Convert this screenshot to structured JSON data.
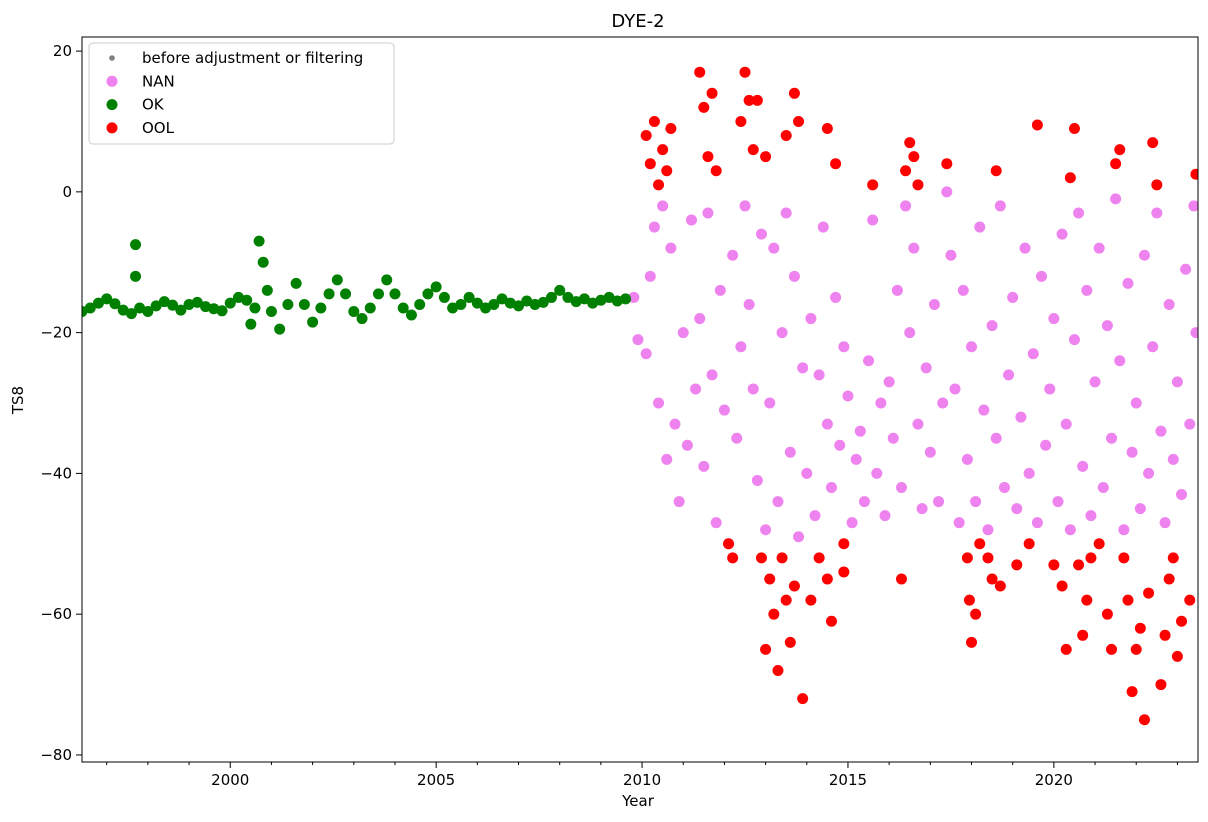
{
  "chart_data": {
    "type": "scatter",
    "title": "DYE-2",
    "xlabel": "Year",
    "ylabel": "TS8",
    "xlim": [
      1996.4,
      2023.5
    ],
    "ylim": [
      -81,
      22
    ],
    "xticks": [
      2000,
      2005,
      2010,
      2015,
      2020
    ],
    "xtick_labels": [
      "2000",
      "2005",
      "2010",
      "2015",
      "2020"
    ],
    "yticks": [
      20,
      0,
      -20,
      -40,
      -60,
      -80
    ],
    "ytick_labels": [
      "20",
      "0",
      "−20",
      "−40",
      "−60",
      "−80"
    ],
    "grid": false,
    "legend_position": "top-left",
    "series": [
      {
        "name": "before adjustment or filtering",
        "color": "#808080",
        "marker": "small-dot",
        "points": []
      },
      {
        "name": "NAN",
        "color": "#ee82ee",
        "marker": "dot",
        "points": [
          [
            2009.8,
            -15
          ],
          [
            2009.9,
            -21
          ],
          [
            2010.1,
            -23
          ],
          [
            2010.2,
            -12
          ],
          [
            2010.3,
            -5
          ],
          [
            2010.4,
            -30
          ],
          [
            2010.5,
            -2
          ],
          [
            2010.6,
            -38
          ],
          [
            2010.7,
            -8
          ],
          [
            2010.8,
            -33
          ],
          [
            2010.9,
            -44
          ],
          [
            2011.0,
            -20
          ],
          [
            2011.1,
            -36
          ],
          [
            2011.2,
            -4
          ],
          [
            2011.3,
            -28
          ],
          [
            2011.4,
            -18
          ],
          [
            2011.5,
            -39
          ],
          [
            2011.6,
            -3
          ],
          [
            2011.7,
            -26
          ],
          [
            2011.8,
            -47
          ],
          [
            2011.9,
            -14
          ],
          [
            2012.0,
            -31
          ],
          [
            2012.1,
            -50
          ],
          [
            2012.2,
            -9
          ],
          [
            2012.3,
            -35
          ],
          [
            2012.4,
            -22
          ],
          [
            2012.5,
            -2
          ],
          [
            2012.6,
            -16
          ],
          [
            2012.7,
            -28
          ],
          [
            2012.8,
            -41
          ],
          [
            2012.9,
            -6
          ],
          [
            2013.0,
            -48
          ],
          [
            2013.1,
            -30
          ],
          [
            2013.2,
            -8
          ],
          [
            2013.3,
            -44
          ],
          [
            2013.4,
            -20
          ],
          [
            2013.5,
            -3
          ],
          [
            2013.6,
            -37
          ],
          [
            2013.7,
            -12
          ],
          [
            2013.8,
            -49
          ],
          [
            2013.9,
            -25
          ],
          [
            2014.0,
            -40
          ],
          [
            2014.1,
            -18
          ],
          [
            2014.2,
            -46
          ],
          [
            2014.3,
            -26
          ],
          [
            2014.4,
            -5
          ],
          [
            2014.5,
            -33
          ],
          [
            2014.6,
            -42
          ],
          [
            2014.7,
            -15
          ],
          [
            2014.8,
            -36
          ],
          [
            2014.9,
            -22
          ],
          [
            2015.0,
            -29
          ],
          [
            2015.1,
            -47
          ],
          [
            2015.2,
            -38
          ],
          [
            2015.3,
            -34
          ],
          [
            2015.4,
            -44
          ],
          [
            2015.5,
            -24
          ],
          [
            2015.6,
            -4
          ],
          [
            2015.7,
            -40
          ],
          [
            2015.8,
            -30
          ],
          [
            2015.9,
            -46
          ],
          [
            2016.0,
            -27
          ],
          [
            2016.1,
            -35
          ],
          [
            2016.2,
            -14
          ],
          [
            2016.3,
            -42
          ],
          [
            2016.4,
            -2
          ],
          [
            2016.5,
            -20
          ],
          [
            2016.6,
            -8
          ],
          [
            2016.7,
            -33
          ],
          [
            2016.8,
            -45
          ],
          [
            2016.9,
            -25
          ],
          [
            2017.0,
            -37
          ],
          [
            2017.1,
            -16
          ],
          [
            2017.2,
            -44
          ],
          [
            2017.3,
            -30
          ],
          [
            2017.4,
            0
          ],
          [
            2017.5,
            -9
          ],
          [
            2017.6,
            -28
          ],
          [
            2017.7,
            -47
          ],
          [
            2017.8,
            -14
          ],
          [
            2017.9,
            -38
          ],
          [
            2018.0,
            -22
          ],
          [
            2018.1,
            -44
          ],
          [
            2018.2,
            -5
          ],
          [
            2018.3,
            -31
          ],
          [
            2018.4,
            -48
          ],
          [
            2018.5,
            -19
          ],
          [
            2018.6,
            -35
          ],
          [
            2018.7,
            -2
          ],
          [
            2018.8,
            -42
          ],
          [
            2018.9,
            -26
          ],
          [
            2019.0,
            -15
          ],
          [
            2019.1,
            -45
          ],
          [
            2019.2,
            -32
          ],
          [
            2019.3,
            -8
          ],
          [
            2019.4,
            -40
          ],
          [
            2019.5,
            -23
          ],
          [
            2019.6,
            -47
          ],
          [
            2019.7,
            -12
          ],
          [
            2019.8,
            -36
          ],
          [
            2019.9,
            -28
          ],
          [
            2020.0,
            -18
          ],
          [
            2020.1,
            -44
          ],
          [
            2020.2,
            -6
          ],
          [
            2020.3,
            -33
          ],
          [
            2020.4,
            -48
          ],
          [
            2020.5,
            -21
          ],
          [
            2020.6,
            -3
          ],
          [
            2020.7,
            -39
          ],
          [
            2020.8,
            -14
          ],
          [
            2020.9,
            -46
          ],
          [
            2021.0,
            -27
          ],
          [
            2021.1,
            -8
          ],
          [
            2021.2,
            -42
          ],
          [
            2021.3,
            -19
          ],
          [
            2021.4,
            -35
          ],
          [
            2021.5,
            -1
          ],
          [
            2021.6,
            -24
          ],
          [
            2021.7,
            -48
          ],
          [
            2021.8,
            -13
          ],
          [
            2021.9,
            -37
          ],
          [
            2022.0,
            -30
          ],
          [
            2022.1,
            -45
          ],
          [
            2022.2,
            -9
          ],
          [
            2022.3,
            -40
          ],
          [
            2022.4,
            -22
          ],
          [
            2022.5,
            -3
          ],
          [
            2022.6,
            -34
          ],
          [
            2022.7,
            -47
          ],
          [
            2022.8,
            -16
          ],
          [
            2022.9,
            -38
          ],
          [
            2023.0,
            -27
          ],
          [
            2023.1,
            -43
          ],
          [
            2023.2,
            -11
          ],
          [
            2023.3,
            -33
          ],
          [
            2023.4,
            -2
          ],
          [
            2023.45,
            -20
          ]
        ]
      },
      {
        "name": "OK",
        "color": "#008000",
        "marker": "dot",
        "points": [
          [
            1996.4,
            -17
          ],
          [
            1996.6,
            -16.5
          ],
          [
            1996.8,
            -15.8
          ],
          [
            1997.0,
            -15.2
          ],
          [
            1997.2,
            -15.9
          ],
          [
            1997.4,
            -16.8
          ],
          [
            1997.6,
            -17.3
          ],
          [
            1997.7,
            -7.5
          ],
          [
            1997.7,
            -12
          ],
          [
            1997.8,
            -16.5
          ],
          [
            1998.0,
            -17
          ],
          [
            1998.2,
            -16.2
          ],
          [
            1998.4,
            -15.6
          ],
          [
            1998.6,
            -16.1
          ],
          [
            1998.8,
            -16.8
          ],
          [
            1999.0,
            -16
          ],
          [
            1999.2,
            -15.7
          ],
          [
            1999.4,
            -16.3
          ],
          [
            1999.6,
            -16.6
          ],
          [
            1999.8,
            -16.9
          ],
          [
            2000.0,
            -15.8
          ],
          [
            2000.2,
            -15
          ],
          [
            2000.4,
            -15.4
          ],
          [
            2000.5,
            -18.8
          ],
          [
            2000.6,
            -16.5
          ],
          [
            2000.7,
            -7
          ],
          [
            2000.8,
            -10
          ],
          [
            2000.9,
            -14
          ],
          [
            2001.0,
            -17
          ],
          [
            2001.2,
            -19.5
          ],
          [
            2001.4,
            -16
          ],
          [
            2001.6,
            -13
          ],
          [
            2001.8,
            -16
          ],
          [
            2002.0,
            -18.5
          ],
          [
            2002.2,
            -16.5
          ],
          [
            2002.4,
            -14.5
          ],
          [
            2002.6,
            -12.5
          ],
          [
            2002.8,
            -14.5
          ],
          [
            2003.0,
            -17
          ],
          [
            2003.2,
            -18
          ],
          [
            2003.4,
            -16.5
          ],
          [
            2003.6,
            -14.5
          ],
          [
            2003.8,
            -12.5
          ],
          [
            2004.0,
            -14.5
          ],
          [
            2004.2,
            -16.5
          ],
          [
            2004.4,
            -17.5
          ],
          [
            2004.6,
            -16
          ],
          [
            2004.8,
            -14.5
          ],
          [
            2005.0,
            -13.5
          ],
          [
            2005.2,
            -15
          ],
          [
            2005.4,
            -16.5
          ],
          [
            2005.6,
            -16
          ],
          [
            2005.8,
            -15
          ],
          [
            2006.0,
            -15.8
          ],
          [
            2006.2,
            -16.5
          ],
          [
            2006.4,
            -16
          ],
          [
            2006.6,
            -15.2
          ],
          [
            2006.8,
            -15.8
          ],
          [
            2007.0,
            -16.2
          ],
          [
            2007.2,
            -15.5
          ],
          [
            2007.4,
            -16
          ],
          [
            2007.6,
            -15.7
          ],
          [
            2007.8,
            -15
          ],
          [
            2008.0,
            -14
          ],
          [
            2008.2,
            -15
          ],
          [
            2008.4,
            -15.6
          ],
          [
            2008.6,
            -15.2
          ],
          [
            2008.8,
            -15.8
          ],
          [
            2009.0,
            -15.4
          ],
          [
            2009.2,
            -15
          ],
          [
            2009.4,
            -15.5
          ],
          [
            2009.6,
            -15.2
          ]
        ]
      },
      {
        "name": "OOL",
        "color": "#ff0000",
        "marker": "dot",
        "points": [
          [
            2010.1,
            8
          ],
          [
            2010.2,
            4
          ],
          [
            2010.3,
            10
          ],
          [
            2010.4,
            1
          ],
          [
            2010.5,
            6
          ],
          [
            2010.6,
            3
          ],
          [
            2010.7,
            9
          ],
          [
            2011.4,
            17
          ],
          [
            2011.5,
            12
          ],
          [
            2011.6,
            5
          ],
          [
            2011.7,
            14
          ],
          [
            2011.8,
            3
          ],
          [
            2012.1,
            -50
          ],
          [
            2012.2,
            -52
          ],
          [
            2012.4,
            10
          ],
          [
            2012.5,
            17
          ],
          [
            2012.6,
            13
          ],
          [
            2012.7,
            6
          ],
          [
            2012.8,
            13
          ],
          [
            2012.9,
            -52
          ],
          [
            2013.0,
            5
          ],
          [
            2013.0,
            -65
          ],
          [
            2013.1,
            -55
          ],
          [
            2013.2,
            -60
          ],
          [
            2013.3,
            -68
          ],
          [
            2013.4,
            -52
          ],
          [
            2013.5,
            8
          ],
          [
            2013.5,
            -58
          ],
          [
            2013.6,
            -64
          ],
          [
            2013.7,
            14
          ],
          [
            2013.7,
            -56
          ],
          [
            2013.8,
            10
          ],
          [
            2013.9,
            -72
          ],
          [
            2014.1,
            -58
          ],
          [
            2014.3,
            -52
          ],
          [
            2014.5,
            9
          ],
          [
            2014.5,
            -55
          ],
          [
            2014.6,
            -61
          ],
          [
            2014.7,
            4
          ],
          [
            2014.9,
            -50
          ],
          [
            2014.9,
            -54
          ],
          [
            2015.6,
            1
          ],
          [
            2016.3,
            -55
          ],
          [
            2016.4,
            3
          ],
          [
            2016.5,
            7
          ],
          [
            2016.6,
            5
          ],
          [
            2016.7,
            1
          ],
          [
            2017.4,
            4
          ],
          [
            2017.9,
            -52
          ],
          [
            2017.95,
            -58
          ],
          [
            2018.0,
            -64
          ],
          [
            2018.1,
            -60
          ],
          [
            2018.2,
            -50
          ],
          [
            2018.4,
            -52
          ],
          [
            2018.5,
            -55
          ],
          [
            2018.6,
            3
          ],
          [
            2018.7,
            -56
          ],
          [
            2019.1,
            -53
          ],
          [
            2019.4,
            -50
          ],
          [
            2019.6,
            9.5
          ],
          [
            2020.0,
            -53
          ],
          [
            2020.2,
            -56
          ],
          [
            2020.3,
            -65
          ],
          [
            2020.4,
            2
          ],
          [
            2020.5,
            9
          ],
          [
            2020.6,
            -53
          ],
          [
            2020.7,
            -63
          ],
          [
            2020.8,
            -58
          ],
          [
            2020.9,
            -52
          ],
          [
            2021.1,
            -50
          ],
          [
            2021.3,
            -60
          ],
          [
            2021.4,
            -65
          ],
          [
            2021.5,
            4
          ],
          [
            2021.6,
            6
          ],
          [
            2021.7,
            -52
          ],
          [
            2021.8,
            -58
          ],
          [
            2021.9,
            -71
          ],
          [
            2022.0,
            -65
          ],
          [
            2022.1,
            -62
          ],
          [
            2022.2,
            -75
          ],
          [
            2022.3,
            -57
          ],
          [
            2022.4,
            7
          ],
          [
            2022.5,
            1
          ],
          [
            2022.6,
            -70
          ],
          [
            2022.7,
            -63
          ],
          [
            2022.8,
            -55
          ],
          [
            2022.9,
            -52
          ],
          [
            2023.0,
            -66
          ],
          [
            2023.1,
            -61
          ],
          [
            2023.3,
            -58
          ],
          [
            2023.45,
            2.5
          ]
        ]
      }
    ]
  }
}
